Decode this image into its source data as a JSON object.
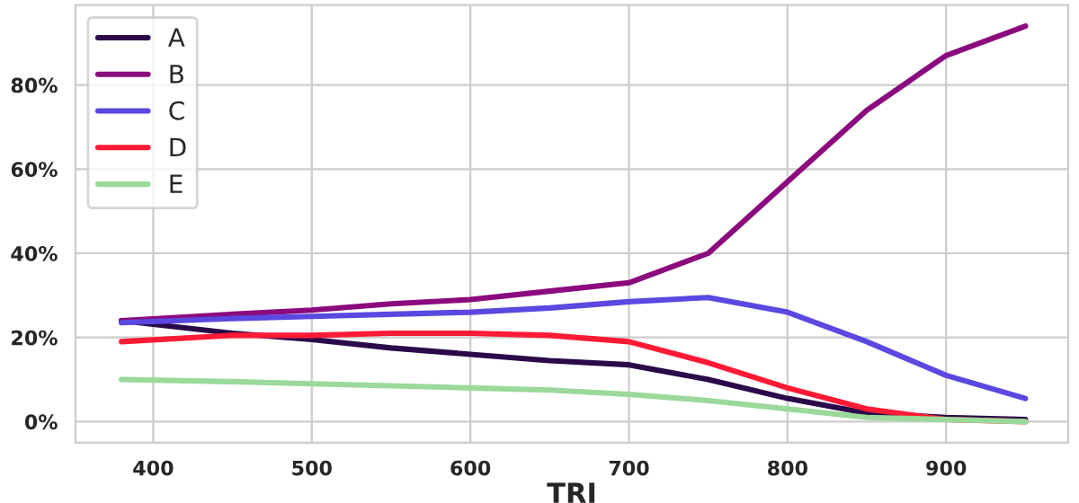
{
  "chart_data": {
    "type": "line",
    "xlabel": "TRI",
    "x": [
      380,
      450,
      500,
      550,
      600,
      650,
      700,
      750,
      800,
      850,
      900,
      950
    ],
    "series": [
      {
        "name": "A",
        "color": "#2a0a4a",
        "values": [
          24,
          21,
          19.5,
          17.5,
          16,
          14.5,
          13.5,
          10,
          5.5,
          2,
          1,
          0.5
        ]
      },
      {
        "name": "B",
        "color": "#8b0a7d",
        "values": [
          24,
          25.5,
          26.5,
          28,
          29,
          31,
          33,
          40,
          57,
          74,
          87,
          94
        ]
      },
      {
        "name": "C",
        "color": "#5a48e0",
        "values": [
          23.5,
          24.5,
          25,
          25.5,
          26,
          27,
          28.5,
          29.5,
          26,
          19,
          11,
          5.5
        ]
      },
      {
        "name": "D",
        "color": "#ff1a35",
        "values": [
          19,
          20.5,
          20.5,
          21,
          21,
          20.5,
          19,
          14,
          8,
          3,
          0.5,
          0
        ]
      },
      {
        "name": "E",
        "color": "#9ad99a",
        "values": [
          10,
          9.5,
          9,
          8.5,
          8,
          7.5,
          6.5,
          5,
          3,
          1,
          0.5,
          0
        ]
      }
    ],
    "xlim": [
      351,
      977
    ],
    "xticks": [
      400,
      500,
      600,
      700,
      800,
      900
    ],
    "ylim": [
      -5,
      99
    ],
    "yticks": [
      {
        "value": 0,
        "label": "0%"
      },
      {
        "value": 20,
        "label": "20%"
      },
      {
        "value": 40,
        "label": "40%"
      },
      {
        "value": 60,
        "label": "60%"
      },
      {
        "value": 80,
        "label": "80%"
      }
    ],
    "grid": true,
    "legend": "upper left",
    "line_style": "solid",
    "marker": "none"
  }
}
